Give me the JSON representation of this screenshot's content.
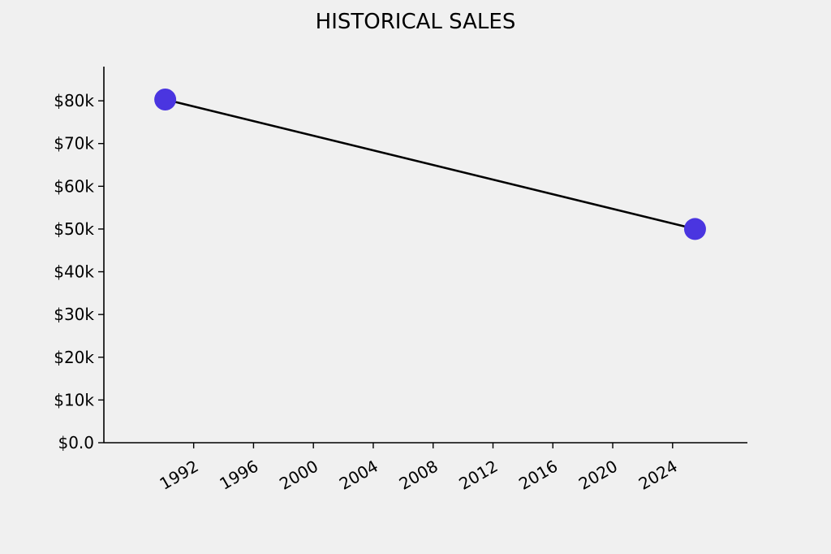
{
  "chart_data": {
    "type": "line",
    "title": "HISTORICAL SALES",
    "xlabel": "",
    "ylabel": "",
    "x": [
      1990.1,
      2025.5
    ],
    "series": [
      {
        "values": [
          80300,
          50000
        ]
      }
    ],
    "xlim": [
      1986.0,
      2029.0
    ],
    "ylim": [
      0,
      88000
    ],
    "x_ticks": [
      1992,
      1996,
      2000,
      2004,
      2008,
      2012,
      2016,
      2020,
      2024
    ],
    "y_ticks": [
      0,
      10000,
      20000,
      30000,
      40000,
      50000,
      60000,
      70000,
      80000
    ],
    "x_tick_labels": [
      "1992",
      "1996",
      "2000",
      "2004",
      "2008",
      "2012",
      "2016",
      "2020",
      "2024"
    ],
    "y_tick_labels": [
      "$0.0",
      "$10k",
      "$20k",
      "$30k",
      "$40k",
      "$50k",
      "$60k",
      "$70k",
      "$80k"
    ],
    "grid": false,
    "line_color": "#000000",
    "marker_color": "#4a35e0",
    "background_color": "#f0f0f0"
  }
}
